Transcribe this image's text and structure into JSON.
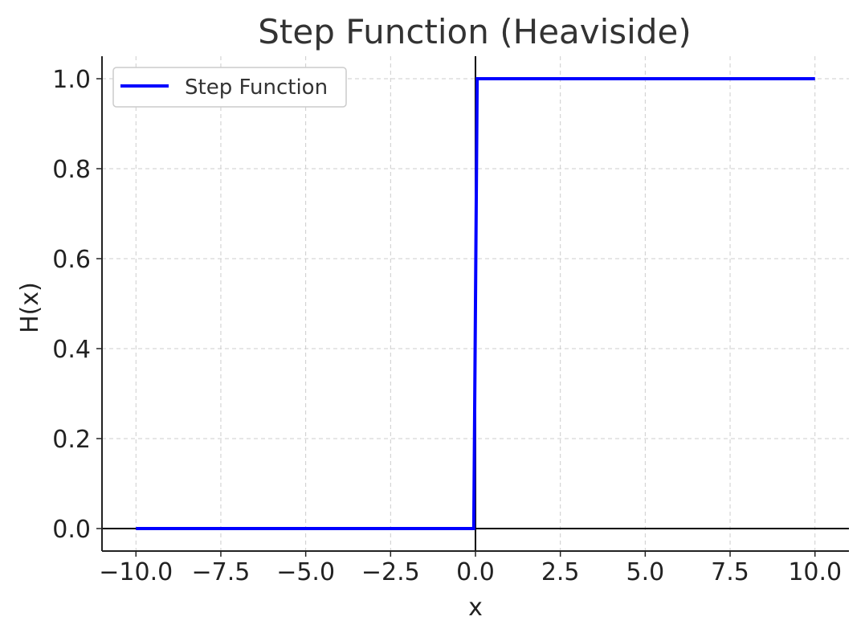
{
  "chart_data": {
    "type": "line",
    "title": "Step Function (Heaviside)",
    "xlabel": "x",
    "ylabel": "H(x)",
    "xlim": [
      -11,
      11
    ],
    "ylim": [
      -0.05,
      1.05
    ],
    "x_ticks": [
      -10,
      -7.5,
      -5,
      -2.5,
      0,
      2.5,
      5,
      7.5,
      10
    ],
    "x_tick_labels": [
      "−10.0",
      "−7.5",
      "−5.0",
      "−2.5",
      "0.0",
      "2.5",
      "5.0",
      "7.5",
      "10.0"
    ],
    "y_ticks": [
      0,
      0.2,
      0.4,
      0.6,
      0.8,
      1.0
    ],
    "y_tick_labels": [
      "0.0",
      "0.2",
      "0.4",
      "0.6",
      "0.8",
      "1.0"
    ],
    "grid": true,
    "legend": {
      "placement": "top-left",
      "entries": [
        "Step Function"
      ]
    },
    "reference_lines": [
      {
        "axis": "x",
        "value": 0,
        "color": "#000000"
      },
      {
        "axis": "y",
        "value": 0,
        "color": "#000000"
      }
    ],
    "series": [
      {
        "name": "Step Function",
        "color": "#0000ff",
        "x": [
          -10,
          -0.05,
          0.05,
          10
        ],
        "y": [
          0,
          0,
          1,
          1
        ]
      }
    ]
  }
}
